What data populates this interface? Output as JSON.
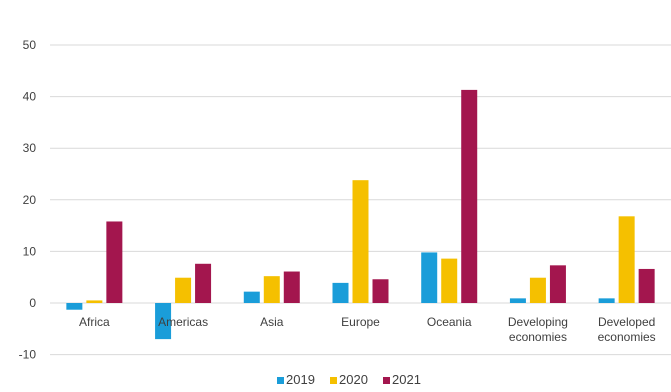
{
  "chart_data": {
    "type": "bar",
    "categories": [
      "Africa",
      "Americas",
      "Asia",
      "Europe",
      "Oceania",
      "Developing economies",
      "Developed economies"
    ],
    "category_lines": [
      [
        "Africa"
      ],
      [
        "Americas"
      ],
      [
        "Asia"
      ],
      [
        "Europe"
      ],
      [
        "Oceania"
      ],
      [
        "Developing",
        "economies"
      ],
      [
        "Developed",
        "economies"
      ]
    ],
    "series": [
      {
        "name": "2019",
        "color": "#1a9dd9",
        "values": [
          -1.3,
          -7.0,
          2.2,
          3.9,
          9.8,
          0.9,
          0.9
        ]
      },
      {
        "name": "2020",
        "color": "#f5c000",
        "values": [
          0.5,
          4.9,
          5.2,
          23.8,
          8.6,
          4.9,
          16.8
        ]
      },
      {
        "name": "2021",
        "color": "#a3164e",
        "values": [
          15.8,
          7.6,
          6.1,
          4.6,
          41.3,
          7.3,
          6.6
        ]
      }
    ],
    "ylim": [
      -10,
      50
    ],
    "yticks": [
      -10,
      0,
      10,
      20,
      30,
      40,
      50
    ],
    "grid": true,
    "legend": "bottom-center"
  }
}
